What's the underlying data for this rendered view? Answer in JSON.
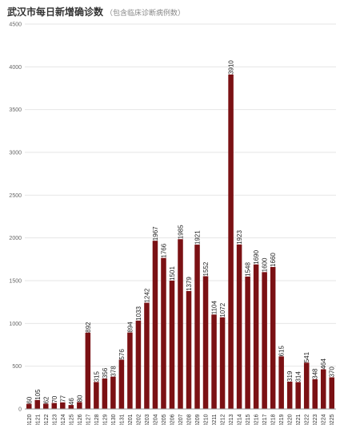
{
  "header": {
    "title": "武汉市每日新增确诊数",
    "subtitle": "（包含临床诊断病例数）"
  },
  "colors": {
    "bar": "#7b1114",
    "grid": "#e6e6e6",
    "axis": "#999999"
  },
  "chart_data": {
    "type": "bar",
    "title": "武汉市每日新增确诊数",
    "subtitle": "（包含临床诊断病例数）",
    "xlabel": "",
    "ylabel": "",
    "ylim": [
      0,
      4500
    ],
    "yticks": [
      "0",
      "500",
      "1000",
      "1500",
      "2000",
      "2500",
      "3000",
      "3500",
      "4000",
      "4500"
    ],
    "grid": true,
    "legend": "none",
    "categories": [
      "0120",
      "0121",
      "0122",
      "0123",
      "0124",
      "0125",
      "0126",
      "0127",
      "0128",
      "0129",
      "0130",
      "0131",
      "0201",
      "0202",
      "0203",
      "0204",
      "0205",
      "0206",
      "0207",
      "0208",
      "0209",
      "0210",
      "0211",
      "0212",
      "0213",
      "0214",
      "0215",
      "0216",
      "0217",
      "0218",
      "0219",
      "0220",
      "0221",
      "0222",
      "0223",
      "0224",
      "0225"
    ],
    "values": [
      60,
      105,
      62,
      70,
      77,
      46,
      80,
      892,
      315,
      356,
      378,
      576,
      894,
      1033,
      1242,
      1967,
      1766,
      1501,
      1985,
      1379,
      1921,
      1552,
      1104,
      1072,
      3910,
      1923,
      1548,
      1690,
      1600,
      1660,
      615,
      319,
      314,
      541,
      348,
      464,
      370
    ]
  }
}
